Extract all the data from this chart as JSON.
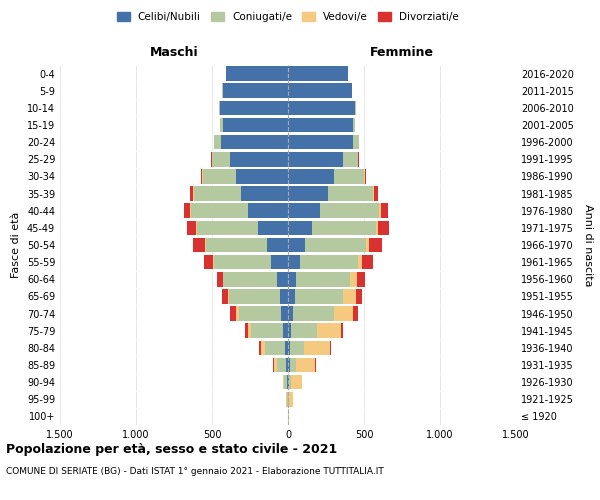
{
  "age_groups": [
    "100+",
    "95-99",
    "90-94",
    "85-89",
    "80-84",
    "75-79",
    "70-74",
    "65-69",
    "60-64",
    "55-59",
    "50-54",
    "45-49",
    "40-44",
    "35-39",
    "30-34",
    "25-29",
    "20-24",
    "15-19",
    "10-14",
    "5-9",
    "0-4"
  ],
  "birth_years": [
    "≤ 1920",
    "1921-1925",
    "1926-1930",
    "1931-1935",
    "1936-1940",
    "1941-1945",
    "1946-1950",
    "1951-1955",
    "1956-1960",
    "1961-1965",
    "1966-1970",
    "1971-1975",
    "1976-1980",
    "1981-1985",
    "1986-1990",
    "1991-1995",
    "1996-2000",
    "2001-2005",
    "2006-2010",
    "2011-2015",
    "2016-2020"
  ],
  "males": {
    "celibi": [
      2,
      3,
      5,
      10,
      20,
      35,
      45,
      55,
      75,
      110,
      140,
      200,
      260,
      310,
      340,
      380,
      440,
      430,
      450,
      430,
      410
    ],
    "coniugati": [
      0,
      5,
      20,
      60,
      130,
      210,
      280,
      330,
      350,
      380,
      400,
      400,
      380,
      310,
      220,
      120,
      50,
      15,
      5,
      5,
      0
    ],
    "vedovi": [
      0,
      2,
      10,
      25,
      30,
      20,
      15,
      10,
      5,
      5,
      5,
      5,
      5,
      5,
      5,
      0,
      0,
      0,
      0,
      0,
      0
    ],
    "divorziati": [
      0,
      0,
      0,
      5,
      10,
      15,
      40,
      40,
      40,
      60,
      80,
      60,
      40,
      20,
      10,
      5,
      0,
      0,
      0,
      0,
      0
    ]
  },
  "females": {
    "nubili": [
      2,
      3,
      5,
      10,
      15,
      20,
      30,
      45,
      55,
      80,
      110,
      160,
      210,
      260,
      300,
      360,
      430,
      430,
      440,
      420,
      395
    ],
    "coniugate": [
      0,
      3,
      15,
      40,
      90,
      170,
      270,
      320,
      350,
      380,
      400,
      420,
      390,
      300,
      200,
      100,
      40,
      10,
      5,
      0,
      0
    ],
    "vedove": [
      5,
      25,
      70,
      130,
      170,
      160,
      130,
      80,
      50,
      30,
      20,
      15,
      10,
      5,
      5,
      0,
      0,
      0,
      0,
      0,
      0
    ],
    "divorziate": [
      0,
      0,
      0,
      5,
      10,
      10,
      30,
      40,
      50,
      70,
      90,
      70,
      50,
      25,
      10,
      5,
      0,
      0,
      0,
      0,
      0
    ]
  },
  "colors": {
    "celibi": "#4472a8",
    "coniugati": "#b5c9a0",
    "vedovi": "#f5c97f",
    "divorziati": "#d93030"
  },
  "xlim": 1500,
  "title": "Popolazione per età, sesso e stato civile - 2021",
  "subtitle": "COMUNE DI SERIATE (BG) - Dati ISTAT 1° gennaio 2021 - Elaborazione TUTTITALIA.IT",
  "xlabel_left": "Maschi",
  "xlabel_right": "Femmine",
  "ylabel_left": "Fasce di età",
  "ylabel_right": "Anni di nascita",
  "legend_labels": [
    "Celibi/Nubili",
    "Coniugati/e",
    "Vedovi/e",
    "Divorziati/e"
  ],
  "xtick_labels": [
    "1.500",
    "1.000",
    "500",
    "0",
    "500",
    "1.000",
    "1.500"
  ],
  "xtick_values": [
    -1500,
    -1000,
    -500,
    0,
    500,
    1000,
    1500
  ]
}
